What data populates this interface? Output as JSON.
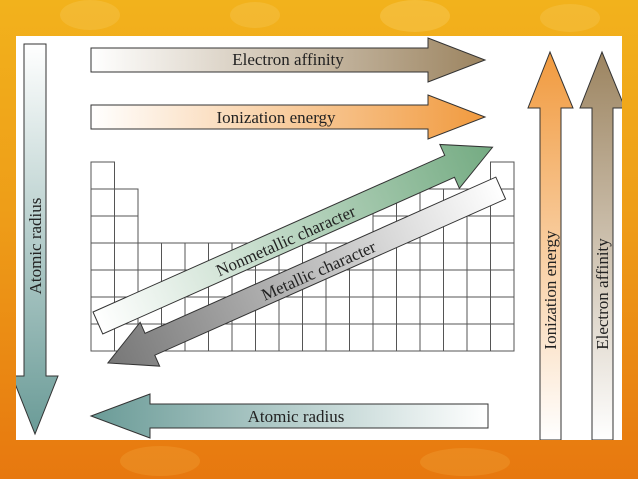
{
  "labels": {
    "electron_affinity_top": "Electron affinity",
    "ionization_energy_top": "Ionization energy",
    "atomic_radius_left": "Atomic radius",
    "atomic_radius_bottom": "Atomic radius",
    "nonmetallic_character": "Nonmetallic character",
    "metallic_character": "Metallic character",
    "ionization_energy_right": "Ionization energy",
    "electron_affinity_right": "Electron affinity"
  },
  "colors": {
    "background": "#ef9f19",
    "electron_affinity": "#a08a66",
    "ionization_energy": "#f0a447",
    "atomic_radius": "#6f9e9a",
    "nonmetallic": "#7fb08a",
    "metallic": "#7f7f7f"
  }
}
